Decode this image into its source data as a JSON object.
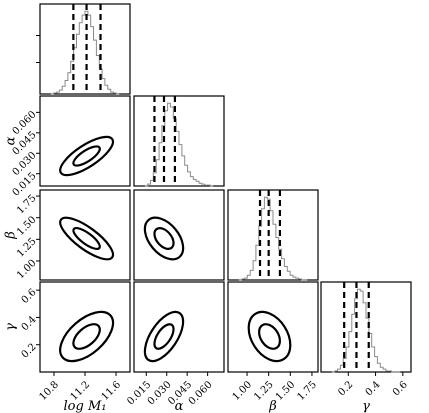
{
  "chart_data": {
    "type": "corner",
    "parameters": [
      {
        "key": "logM1",
        "label": "log M₁",
        "range": [
          10.6,
          1.8
        ],
        "ticks": [
          10.8,
          11.2,
          11.6
        ],
        "tick_labels": [
          "10.8",
          "11.2",
          "11.6"
        ]
      },
      {
        "key": "alpha",
        "label": "α",
        "range": [
          0.006,
          0.072
        ],
        "ticks": [
          0.015,
          0.03,
          0.045,
          0.06
        ],
        "tick_labels": [
          "0.015",
          "0.030",
          "0.045",
          "0.060"
        ]
      },
      {
        "key": "beta",
        "label": "β",
        "range": [
          0.78,
          1.82
        ],
        "ticks": [
          1.0,
          1.25,
          1.5,
          1.75
        ],
        "tick_labels": [
          "1.00",
          "1.25",
          "1.50",
          "1.75"
        ]
      },
      {
        "key": "gamma",
        "label": "γ",
        "range": [
          0.0,
          0.66
        ],
        "ticks": [
          0.2,
          0.4,
          0.6
        ],
        "tick_labels": [
          "0.2",
          "0.4",
          "0.6"
        ]
      }
    ],
    "marginals": [
      {
        "param": "logM1",
        "quantiles": [
          11.05,
          11.22,
          11.4
        ],
        "counts": [
          0,
          1,
          2,
          4,
          8,
          14,
          22,
          34,
          48,
          62,
          74,
          82,
          86,
          82,
          70,
          56,
          40,
          26,
          16,
          9,
          5,
          2,
          1,
          0
        ]
      },
      {
        "param": "alpha",
        "quantiles": [
          0.021,
          0.028,
          0.036
        ],
        "counts": [
          0,
          2,
          6,
          14,
          28,
          46,
          64,
          80,
          88,
          84,
          72,
          58,
          44,
          32,
          22,
          15,
          10,
          7,
          5,
          3,
          2,
          1,
          1,
          0
        ]
      },
      {
        "param": "beta",
        "quantiles": [
          1.15,
          1.25,
          1.38
        ],
        "counts": [
          0,
          1,
          2,
          5,
          10,
          20,
          36,
          56,
          74,
          86,
          84,
          72,
          58,
          44,
          32,
          22,
          14,
          9,
          5,
          3,
          2,
          1,
          0,
          0
        ]
      },
      {
        "param": "gamma",
        "quantiles": [
          0.17,
          0.26,
          0.35
        ],
        "counts": [
          0,
          1,
          3,
          7,
          14,
          26,
          42,
          60,
          76,
          86,
          84,
          72,
          56,
          40,
          26,
          16,
          9,
          5,
          3,
          1,
          1,
          0,
          0,
          0
        ]
      }
    ],
    "joint": [
      {
        "x": "logM1",
        "y": "alpha",
        "center": [
          11.22,
          0.028
        ],
        "sd": [
          0.17,
          0.007
        ],
        "rho": 0.75
      },
      {
        "x": "logM1",
        "y": "beta",
        "center": [
          11.22,
          1.26
        ],
        "sd": [
          0.17,
          0.12
        ],
        "rho": -0.78
      },
      {
        "x": "alpha",
        "y": "beta",
        "center": [
          0.028,
          1.26
        ],
        "sd": [
          0.007,
          0.12
        ],
        "rho": -0.45
      },
      {
        "x": "logM1",
        "y": "gamma",
        "center": [
          11.22,
          0.26
        ],
        "sd": [
          0.17,
          0.09
        ],
        "rho": 0.55
      },
      {
        "x": "alpha",
        "y": "gamma",
        "center": [
          0.028,
          0.26
        ],
        "sd": [
          0.007,
          0.09
        ],
        "rho": 0.6
      },
      {
        "x": "beta",
        "y": "gamma",
        "center": [
          1.26,
          0.26
        ],
        "sd": [
          0.12,
          0.09
        ],
        "rho": -0.35
      }
    ],
    "contour_levels_sigma": [
      1,
      2
    ],
    "histogram_color": "#8a8a8a",
    "line_color": "#000000"
  }
}
